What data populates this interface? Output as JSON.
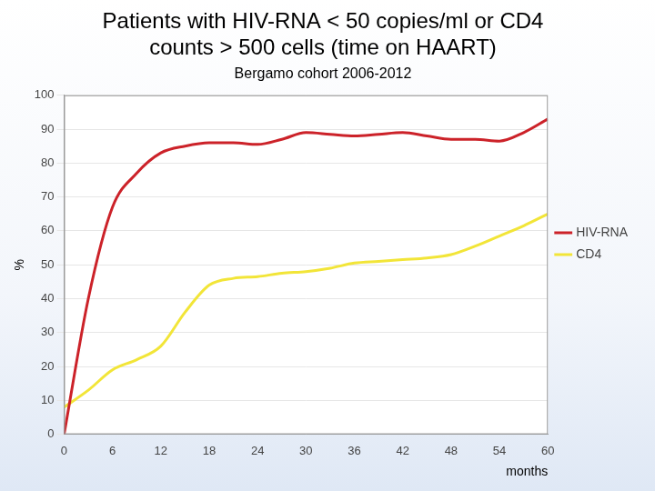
{
  "chart_data": {
    "type": "line",
    "title": "Patients with HIV-RNA < 50 copies/ml or CD4 counts > 500 cells (time on HAART)",
    "subtitle": "Bergamo cohort 2006-2012",
    "x_label": "months",
    "y_label": "%",
    "x": [
      0,
      3,
      6,
      9,
      12,
      15,
      18,
      21,
      24,
      27,
      30,
      33,
      36,
      39,
      42,
      45,
      48,
      51,
      54,
      57,
      60
    ],
    "series": [
      {
        "name": "HIV-RNA",
        "color": "#cc2229",
        "values": [
          0,
          40,
          67,
          77,
          83,
          85,
          86,
          86,
          85.5,
          87,
          89,
          88.5,
          88,
          88.5,
          89,
          88,
          87,
          87,
          86.5,
          89,
          93
        ]
      },
      {
        "name": "CD4",
        "color": "#f2e538",
        "values": [
          8,
          13,
          19,
          22,
          26,
          36,
          44,
          46,
          46.5,
          47.5,
          48,
          49,
          50.5,
          51,
          51.5,
          52,
          53,
          55.5,
          58.5,
          61.5,
          65
        ]
      }
    ],
    "xlim": [
      0,
      60
    ],
    "xticks": [
      0,
      6,
      12,
      18,
      24,
      30,
      36,
      42,
      48,
      54,
      60
    ],
    "ylim": [
      0,
      100
    ],
    "yticks": [
      0,
      10,
      20,
      30,
      40,
      50,
      60,
      70,
      80,
      90,
      100
    ],
    "grid": true,
    "legend": "right"
  }
}
